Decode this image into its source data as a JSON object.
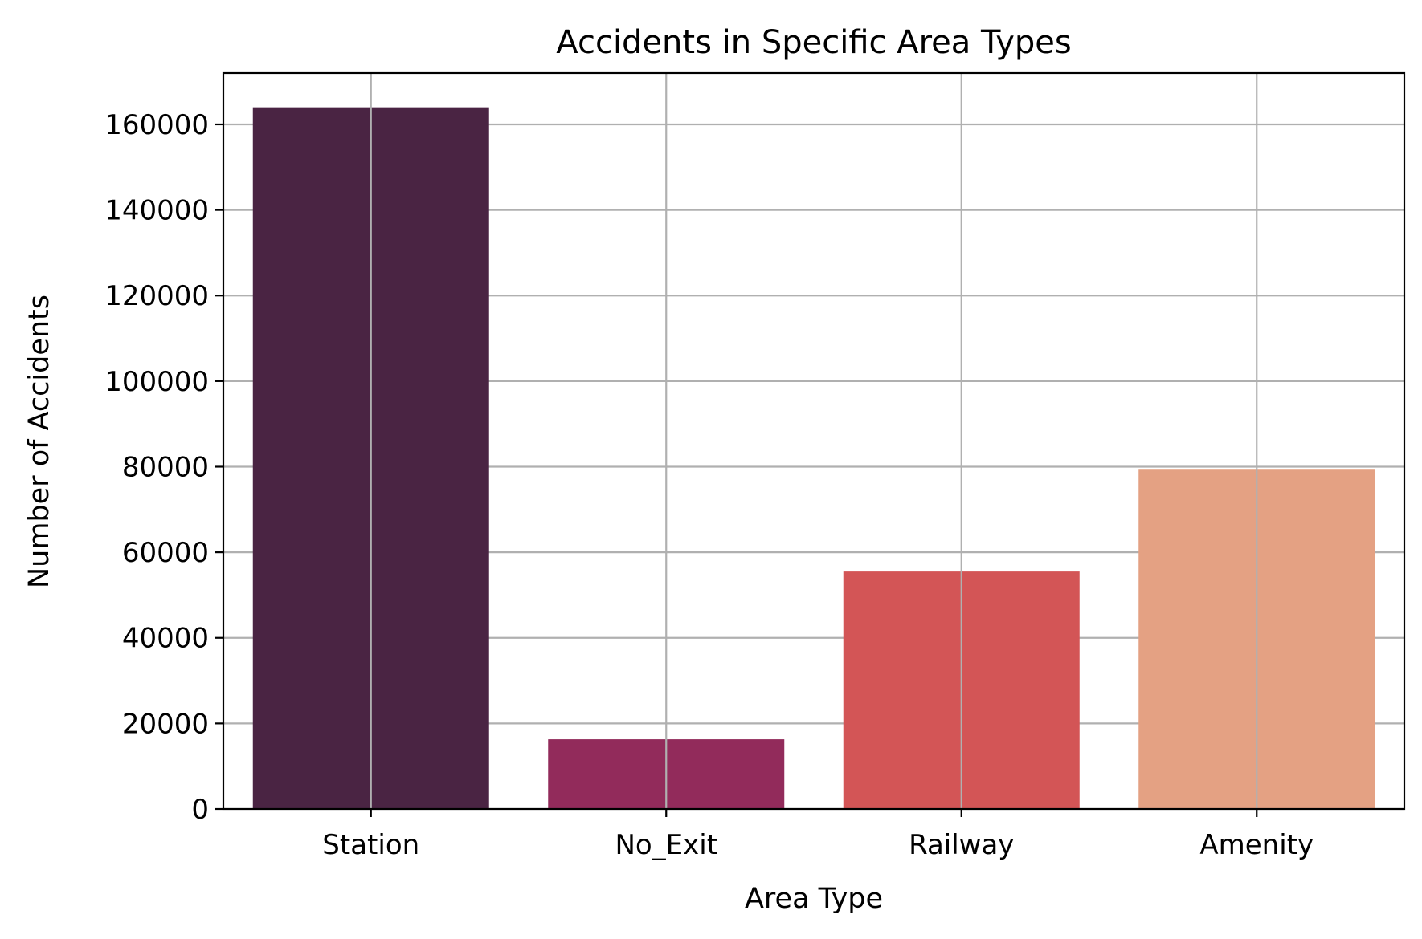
{
  "chart_data": {
    "type": "bar",
    "title": "Accidents in Specific Area Types",
    "xlabel": "Area Type",
    "ylabel": "Number of Accidents",
    "categories": [
      "Station",
      "No_Exit",
      "Railway",
      "Amenity"
    ],
    "values": [
      164000,
      16300,
      55500,
      79300
    ],
    "colors": [
      "#4a2443",
      "#922b5b",
      "#d35556",
      "#e4a183"
    ],
    "ylim": [
      0,
      172000
    ],
    "yticks": [
      0,
      20000,
      40000,
      60000,
      80000,
      100000,
      120000,
      140000,
      160000
    ],
    "grid": true,
    "legend": "none"
  }
}
